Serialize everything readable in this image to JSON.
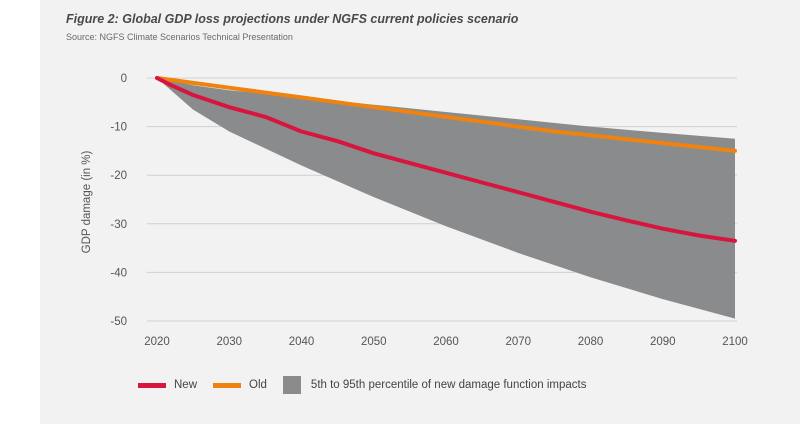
{
  "title": "Figure 2: Global GDP loss projections under NGFS current policies scenario",
  "source": "Source: NGFS Climate Scenarios Technical Presentation",
  "chart_data": {
    "type": "line",
    "ylabel": "GDP damage (in %)",
    "xlabel": "",
    "xlim": [
      2020,
      2100
    ],
    "ylim": [
      -50,
      0
    ],
    "x_ticks": [
      "2020",
      "2030",
      "2040",
      "2050",
      "2060",
      "2070",
      "2080",
      "2090",
      "2100"
    ],
    "y_ticks": [
      "0",
      "-10",
      "-20",
      "-30",
      "-40",
      "-50"
    ],
    "grid": "horizontal",
    "legend_position": "bottom",
    "x": [
      2020,
      2022,
      2025,
      2030,
      2035,
      2040,
      2045,
      2050,
      2055,
      2060,
      2065,
      2070,
      2075,
      2080,
      2085,
      2090,
      2095,
      2100
    ],
    "series": [
      {
        "name": "New",
        "color": "#d6163f",
        "values": [
          0,
          -1.5,
          -3.5,
          -6,
          -8,
          -11,
          -13,
          -15.5,
          -17.5,
          -19.5,
          -21.5,
          -23.5,
          -25.5,
          -27.5,
          -29.3,
          -31,
          -32.4,
          -33.5
        ]
      },
      {
        "name": "Old",
        "color": "#f0820f",
        "values": [
          0,
          -0.4,
          -1,
          -2,
          -3,
          -4,
          -5,
          -6,
          -7,
          -8,
          -9,
          -10,
          -11,
          -11.8,
          -12.6,
          -13.4,
          -14.2,
          -15
        ]
      }
    ],
    "band": {
      "name": "5th to 95th percentile of new damage function impacts",
      "color": "#8a8b8d",
      "x": [
        2020,
        2025,
        2030,
        2040,
        2050,
        2060,
        2070,
        2080,
        2090,
        2100
      ],
      "upper": [
        0,
        -1.5,
        -2.5,
        -4,
        -5.5,
        -7,
        -8.5,
        -10,
        -11.3,
        -12.5
      ],
      "lower": [
        0,
        -6.5,
        -11,
        -18,
        -24.5,
        -30.5,
        -36,
        -41,
        -45.5,
        -49.5
      ]
    }
  }
}
